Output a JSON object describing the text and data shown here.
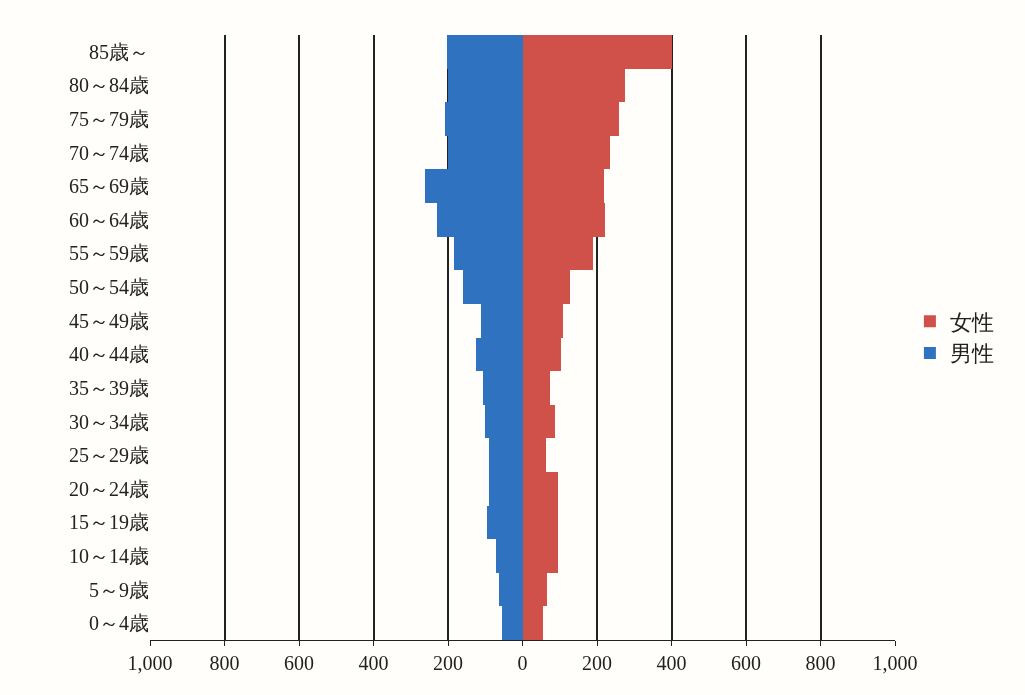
{
  "chart_data": {
    "type": "bar",
    "orientation": "horizontal",
    "stacked": true,
    "categories": [
      "85歳～",
      "80～84歳",
      "75～79歳",
      "70～74歳",
      "65～69歳",
      "60～64歳",
      "55～59歳",
      "50～54歳",
      "45～49歳",
      "40～44歳",
      "35～39歳",
      "30～34歳",
      "25～29歳",
      "20～24歳",
      "15～19歳",
      "10～14歳",
      "5～9歳",
      "0～4歳"
    ],
    "series": [
      {
        "name": "女性",
        "color": "#d0504a",
        "values": [
          400,
          274,
          260,
          234,
          220,
          222,
          190,
          128,
          110,
          104,
          75,
          88,
          62,
          94,
          94,
          94,
          67,
          54
        ]
      },
      {
        "name": "男性",
        "color": "#2f73c0",
        "values": [
          -203,
          -200,
          -208,
          -200,
          -262,
          -230,
          -184,
          -160,
          -112,
          -125,
          -105,
          -101,
          -90,
          -90,
          -95,
          -72,
          -63,
          -55
        ]
      }
    ],
    "xlim": [
      -1000,
      1000
    ],
    "xticks": [
      {
        "value": -1000,
        "label": "1,000"
      },
      {
        "value": -800,
        "label": "800"
      },
      {
        "value": -600,
        "label": "600"
      },
      {
        "value": -400,
        "label": "400"
      },
      {
        "value": -200,
        "label": "200"
      },
      0,
      200,
      400,
      600,
      800,
      {
        "value": 1000,
        "label": "1,000"
      }
    ],
    "grid": "x",
    "legend": "right"
  }
}
